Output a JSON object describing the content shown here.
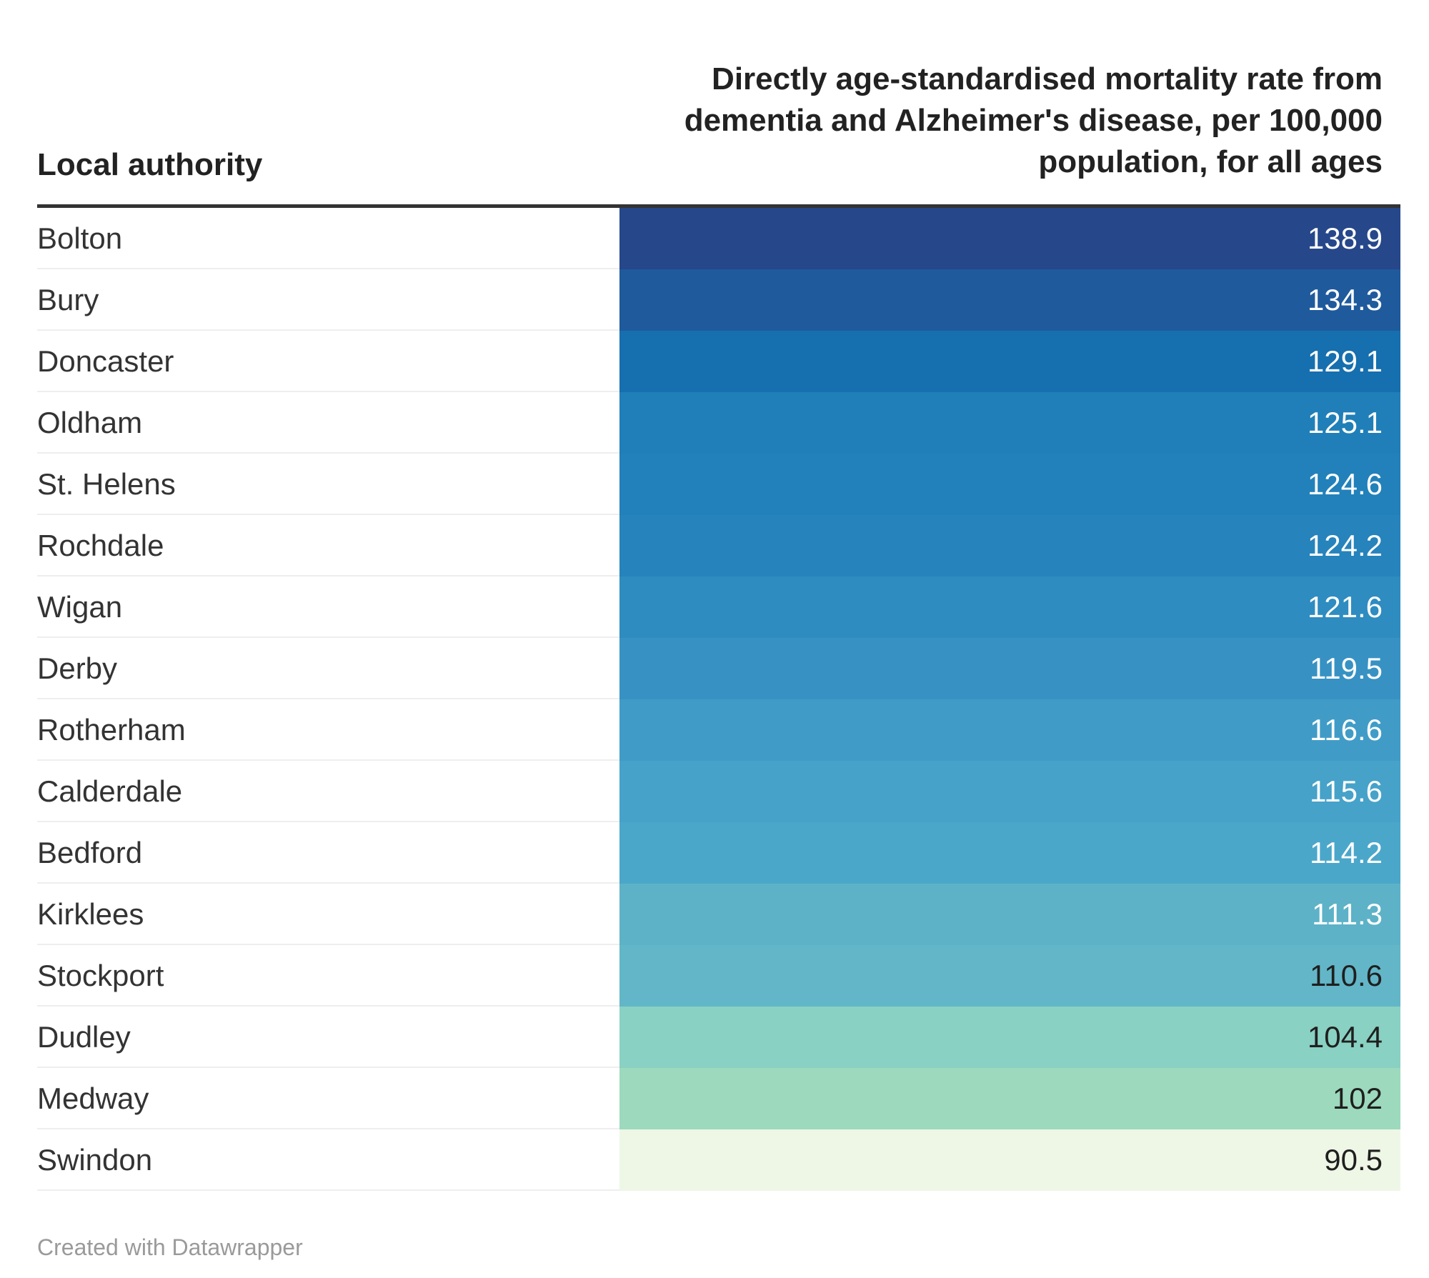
{
  "chart_data": {
    "type": "table",
    "columns": [
      "Local authority",
      "Directly age-standardised mortality rate from dementia and Alzheimer's disease, per 100,000 population, for all ages"
    ],
    "rows": [
      {
        "name": "Bolton",
        "value": "138.9",
        "color": "#26478a",
        "text_color": "#ffffff"
      },
      {
        "name": "Bury",
        "value": "134.3",
        "color": "#1f5a9c",
        "text_color": "#ffffff"
      },
      {
        "name": "Doncaster",
        "value": "129.1",
        "color": "#166fae",
        "text_color": "#ffffff"
      },
      {
        "name": "Oldham",
        "value": "125.1",
        "color": "#207fb8",
        "text_color": "#ffffff"
      },
      {
        "name": "St. Helens",
        "value": "124.6",
        "color": "#2281ba",
        "text_color": "#ffffff"
      },
      {
        "name": "Rochdale",
        "value": "124.2",
        "color": "#2683bb",
        "text_color": "#ffffff"
      },
      {
        "name": "Wigan",
        "value": "121.6",
        "color": "#2e8cc0",
        "text_color": "#ffffff"
      },
      {
        "name": "Derby",
        "value": "119.5",
        "color": "#3792c3",
        "text_color": "#ffffff"
      },
      {
        "name": "Rotherham",
        "value": "116.6",
        "color": "#409cc7",
        "text_color": "#ffffff"
      },
      {
        "name": "Calderdale",
        "value": "115.6",
        "color": "#46a2c9",
        "text_color": "#ffffff"
      },
      {
        "name": "Bedford",
        "value": "114.2",
        "color": "#4aa7ca",
        "text_color": "#ffffff"
      },
      {
        "name": "Kirklees",
        "value": "111.3",
        "color": "#5db2c7",
        "text_color": "#ffffff"
      },
      {
        "name": "Stockport",
        "value": "110.6",
        "color": "#62b6c8",
        "text_color": "#1f1f1f"
      },
      {
        "name": "Dudley",
        "value": "104.4",
        "color": "#89d1c2",
        "text_color": "#1f1f1f"
      },
      {
        "name": "Medway",
        "value": "102",
        "color": "#9cd9bd",
        "text_color": "#1f1f1f"
      },
      {
        "name": "Swindon",
        "value": "90.5",
        "color": "#eef7e6",
        "text_color": "#1f1f1f"
      }
    ]
  },
  "footer": "Created with Datawrapper"
}
